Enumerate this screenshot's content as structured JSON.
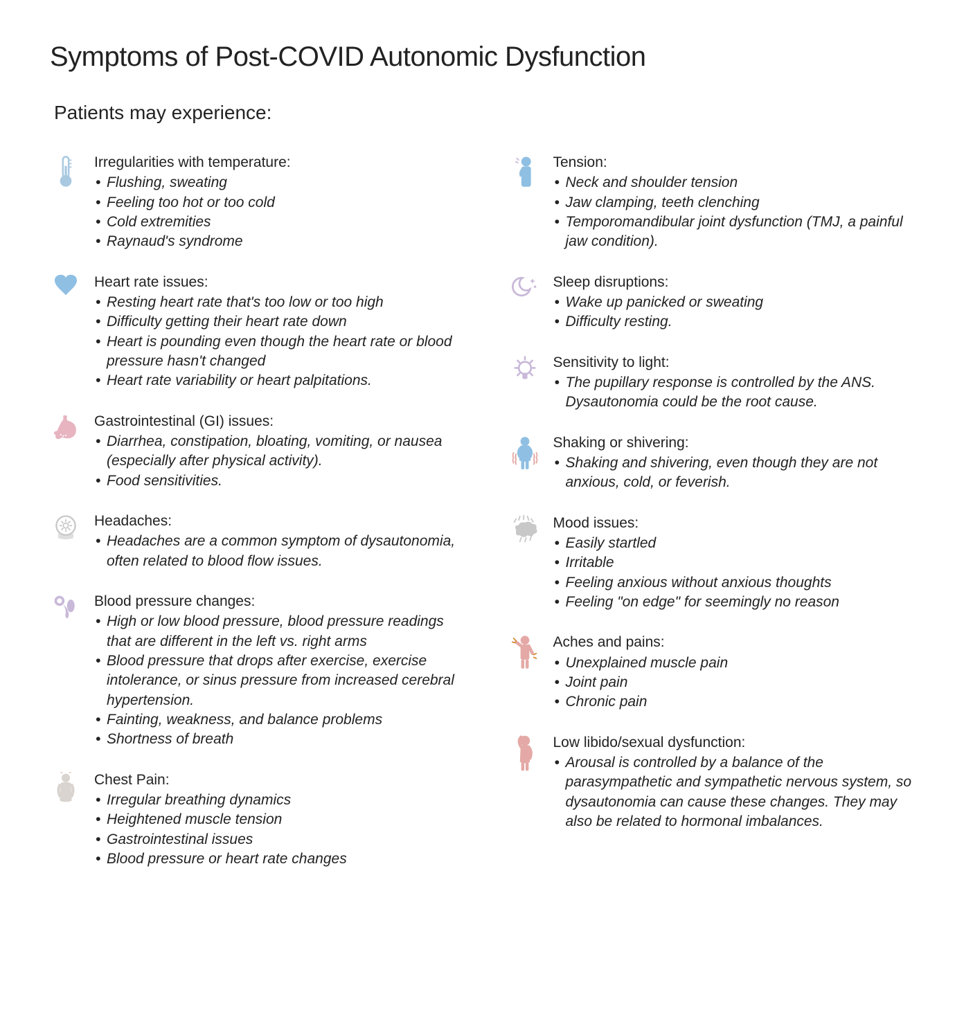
{
  "colors": {
    "text": "#222222",
    "background": "#ffffff",
    "blue_light": "#a8c9e0",
    "blue_med": "#8fbfe3",
    "pink": "#e7b4c0",
    "lilac": "#c9b9d9",
    "salmon": "#e4a9a6",
    "grey": "#c8c8c8",
    "skin": "#e6c7b8"
  },
  "typography": {
    "title_fontsize": 40,
    "subtitle_fontsize": 28,
    "section_title_fontsize": 21,
    "bullet_fontsize": 21,
    "font_family": "Helvetica / system sans-serif"
  },
  "title": "Symptoms of Post-COVID Autonomic Dysfunction",
  "subtitle": "Patients may experience:",
  "left": [
    {
      "icon": "thermometer-icon",
      "heading": "Irregularities with temperature:",
      "bullets": [
        "Flushing, sweating",
        "Feeling too hot or too cold",
        "Cold extremities",
        "Raynaud's syndrome"
      ]
    },
    {
      "icon": "heart-icon",
      "heading": "Heart rate issues:",
      "bullets": [
        "Resting heart rate that's too low or too high",
        "Difficulty getting their heart rate down",
        "Heart is pounding even though the heart rate or blood pressure hasn't changed",
        "Heart rate variability or heart palpitations."
      ]
    },
    {
      "icon": "stomach-icon",
      "heading": "Gastrointestinal (GI) issues:",
      "bullets": [
        "Diarrhea, constipation, bloating, vomiting, or nausea (especially after physical activity).",
        "Food sensitivities."
      ]
    },
    {
      "icon": "headache-icon",
      "heading": "Headaches:",
      "bullets": [
        "Headaches are a common symptom of dysautonomia, often related to blood flow issues."
      ]
    },
    {
      "icon": "bp-icon",
      "heading": "Blood pressure changes:",
      "bullets": [
        "High or low blood pressure, blood pressure readings that are different in the left vs. right arms",
        "Blood pressure that drops after exercise, exercise intolerance, or sinus pressure from increased cerebral hypertension.",
        "Fainting, weakness, and balance problems",
        "Shortness of breath"
      ]
    },
    {
      "icon": "chest-icon",
      "heading": "Chest Pain:",
      "bullets": [
        " Irregular breathing dynamics",
        "Heightened muscle tension",
        "Gastrointestinal issues",
        "Blood pressure or heart rate changes"
      ]
    }
  ],
  "right": [
    {
      "icon": "tension-icon",
      "heading": "Tension:",
      "bullets": [
        "Neck and shoulder tension",
        "Jaw clamping, teeth clenching",
        "Temporomandibular joint dysfunction (TMJ, a painful jaw condition)."
      ]
    },
    {
      "icon": "sleep-icon",
      "heading": "Sleep disruptions:",
      "bullets": [
        "Wake up panicked or sweating",
        "Difficulty resting."
      ]
    },
    {
      "icon": "light-icon",
      "heading": "Sensitivity to light:",
      "bullets": [
        "The pupillary response is controlled by the ANS."
      ],
      "follow": "Dysautonomia could be the root cause."
    },
    {
      "icon": "shiver-icon",
      "heading": "Shaking or shivering:",
      "bullets": [
        "Shaking and shivering, even though they are not anxious, cold, or feverish."
      ]
    },
    {
      "icon": "mood-icon",
      "heading": "Mood issues:",
      "bullets": [
        "Easily startled",
        "Irritable",
        "Feeling anxious without anxious thoughts",
        "Feeling \"on edge\" for seemingly no reason"
      ]
    },
    {
      "icon": "ache-icon",
      "heading": "Aches and pains:",
      "bullets": [
        "Unexplained muscle pain",
        "Joint pain",
        "Chronic pain"
      ]
    },
    {
      "icon": "libido-icon",
      "heading": "Low libido/sexual dysfunction:",
      "bullets": [
        "Arousal is controlled by a balance of the parasympathetic and sympathetic nervous system, so dysautonomia can cause these changes. They may also be related to hormonal imbalances."
      ]
    }
  ]
}
